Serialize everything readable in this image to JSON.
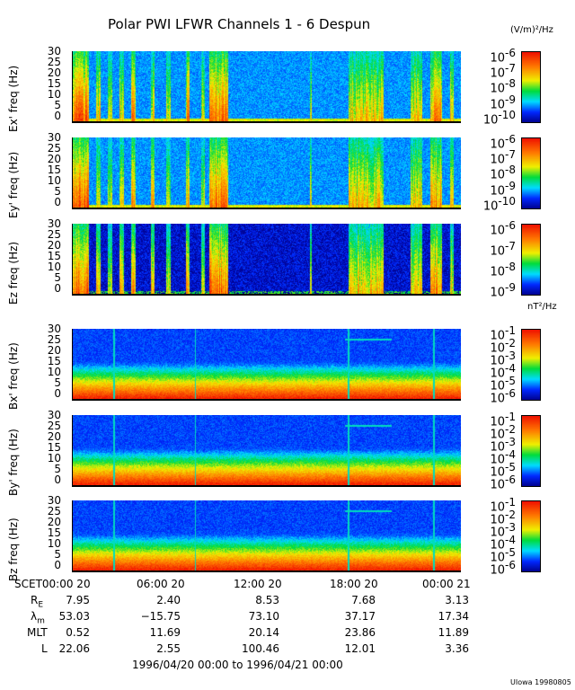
{
  "title": "Polar PWI LFWR Channels 1 - 6 Despun",
  "units": {
    "e": "(V/m)²/Hz",
    "b": "nT²/Hz"
  },
  "chart_data": {
    "type": "heatmap",
    "title": "Polar PWI LFWR Channels 1 - 6 Despun",
    "xlabel": "1996/04/20 00:00 to 1996/04/21 00:00",
    "x_ticks": [
      "SCET00:00 20",
      "06:00 20",
      "12:00 20",
      "18:00 20",
      "00:00 21"
    ],
    "panels": [
      {
        "ylabel": "Ex' freq (Hz)",
        "yticks": [
          "30",
          "25",
          "20",
          "15",
          "10",
          "5",
          "0"
        ],
        "ylim": [
          0,
          30
        ],
        "kind": "e",
        "cbar_ticks": [
          "-6",
          "-7",
          "-8",
          "-9",
          "-10"
        ],
        "clim_log10": [
          -10.3,
          -6
        ]
      },
      {
        "ylabel": "Ey' freq (Hz)",
        "yticks": [
          "30",
          "25",
          "20",
          "15",
          "10",
          "5",
          "0"
        ],
        "ylim": [
          0,
          30
        ],
        "kind": "e",
        "cbar_ticks": [
          "-6",
          "-7",
          "-8",
          "-9",
          "-10"
        ],
        "clim_log10": [
          -10.3,
          -6
        ]
      },
      {
        "ylabel": "Ez freq (Hz)",
        "yticks": [
          "30",
          "25",
          "20",
          "15",
          "10",
          "5",
          "0"
        ],
        "ylim": [
          0,
          30
        ],
        "kind": "ez",
        "cbar_ticks": [
          "-6",
          "-7",
          "-8",
          "-9"
        ],
        "clim_log10": [
          -9.2,
          -6
        ]
      },
      {
        "ylabel": "Bx' freq (Hz)",
        "yticks": [
          "30",
          "25",
          "20",
          "15",
          "10",
          "5",
          "0"
        ],
        "ylim": [
          0,
          30
        ],
        "kind": "b",
        "cbar_ticks": [
          "-1",
          "-2",
          "-3",
          "-4",
          "-5",
          "-6"
        ],
        "clim_log10": [
          -6.3,
          -1
        ]
      },
      {
        "ylabel": "By' freq (Hz)",
        "yticks": [
          "30",
          "25",
          "20",
          "15",
          "10",
          "5",
          "0"
        ],
        "ylim": [
          0,
          30
        ],
        "kind": "b",
        "cbar_ticks": [
          "-1",
          "-2",
          "-3",
          "-4",
          "-5",
          "-6"
        ],
        "clim_log10": [
          -6.3,
          -1
        ]
      },
      {
        "ylabel": "Bz freq (Hz)",
        "yticks": [
          "30",
          "25",
          "20",
          "15",
          "10",
          "5",
          "0"
        ],
        "ylim": [
          0,
          30
        ],
        "kind": "b",
        "cbar_ticks": [
          "-1",
          "-2",
          "-3",
          "-4",
          "-5",
          "-6"
        ],
        "clim_log10": [
          -6.3,
          -1
        ]
      }
    ]
  },
  "ephemeris": {
    "rows": [
      {
        "label": "R",
        "sub": "E",
        "values": [
          "7.95",
          "2.40",
          "8.53",
          "7.68",
          "3.13"
        ]
      },
      {
        "label": "λ",
        "sub": "m",
        "values": [
          "53.03",
          "−15.75",
          "73.10",
          "37.17",
          "17.34"
        ]
      },
      {
        "label": "MLT",
        "sub": "",
        "values": [
          "0.52",
          "11.69",
          "20.14",
          "23.86",
          "11.89"
        ]
      },
      {
        "label": "L",
        "sub": "",
        "values": [
          "22.06",
          "2.55",
          "100.46",
          "12.01",
          "3.36"
        ]
      }
    ]
  },
  "cbar_base": "10",
  "footer": "UIowa 19980805"
}
